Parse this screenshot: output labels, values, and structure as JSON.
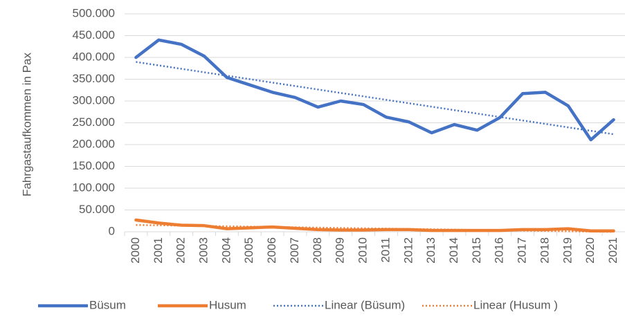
{
  "chart_data": {
    "type": "line",
    "y_label": "Fahrgastaufkommen in Pax",
    "categories": [
      "2000",
      "2001",
      "2002",
      "2003",
      "2004",
      "2005",
      "2006",
      "2007",
      "2008",
      "2009",
      "2010",
      "2011",
      "2012",
      "2013",
      "2014",
      "2015",
      "2016",
      "2017",
      "2018",
      "2019",
      "2020",
      "2021"
    ],
    "series": [
      {
        "name": "Büsum",
        "color": "#4472c4",
        "values": [
          400000,
          440000,
          430000,
          403000,
          354000,
          337000,
          320000,
          308000,
          286000,
          300000,
          292000,
          263000,
          252000,
          227000,
          246000,
          233000,
          262000,
          317000,
          320000,
          289000,
          211000,
          257000
        ]
      },
      {
        "name": "Husum",
        "color": "#ed7d31",
        "values": [
          27000,
          20000,
          15000,
          14000,
          7000,
          9000,
          11000,
          8000,
          5000,
          4000,
          4000,
          5000,
          5000,
          3000,
          3000,
          3000,
          3000,
          5000,
          5000,
          7000,
          2000,
          2000
        ]
      }
    ],
    "trendlines": [
      {
        "name": "Linear (Büsum)",
        "series": 0,
        "kind": "linear",
        "color": "#4472c4",
        "style": "dotted"
      },
      {
        "name": "Linear (Husum )",
        "series": 1,
        "kind": "linear",
        "color": "#ed7d31",
        "style": "dotted"
      }
    ],
    "ylim": [
      0,
      500000
    ],
    "yticks": [
      0,
      {
        "value": 50000,
        "label": "50.000"
      },
      {
        "value": 100000,
        "label": "100.000"
      },
      {
        "value": 150000,
        "label": "150.000"
      },
      {
        "value": 200000,
        "label": "200.000"
      },
      {
        "value": 250000,
        "label": "250.000"
      },
      {
        "value": 300000,
        "label": "300.000"
      },
      {
        "value": 350000,
        "label": "350.000"
      },
      {
        "value": 400000,
        "label": "400.000"
      },
      {
        "value": 450000,
        "label": "450.000"
      },
      {
        "value": 500000,
        "label": "500.000"
      }
    ],
    "grid": true,
    "legend": "bottom"
  }
}
